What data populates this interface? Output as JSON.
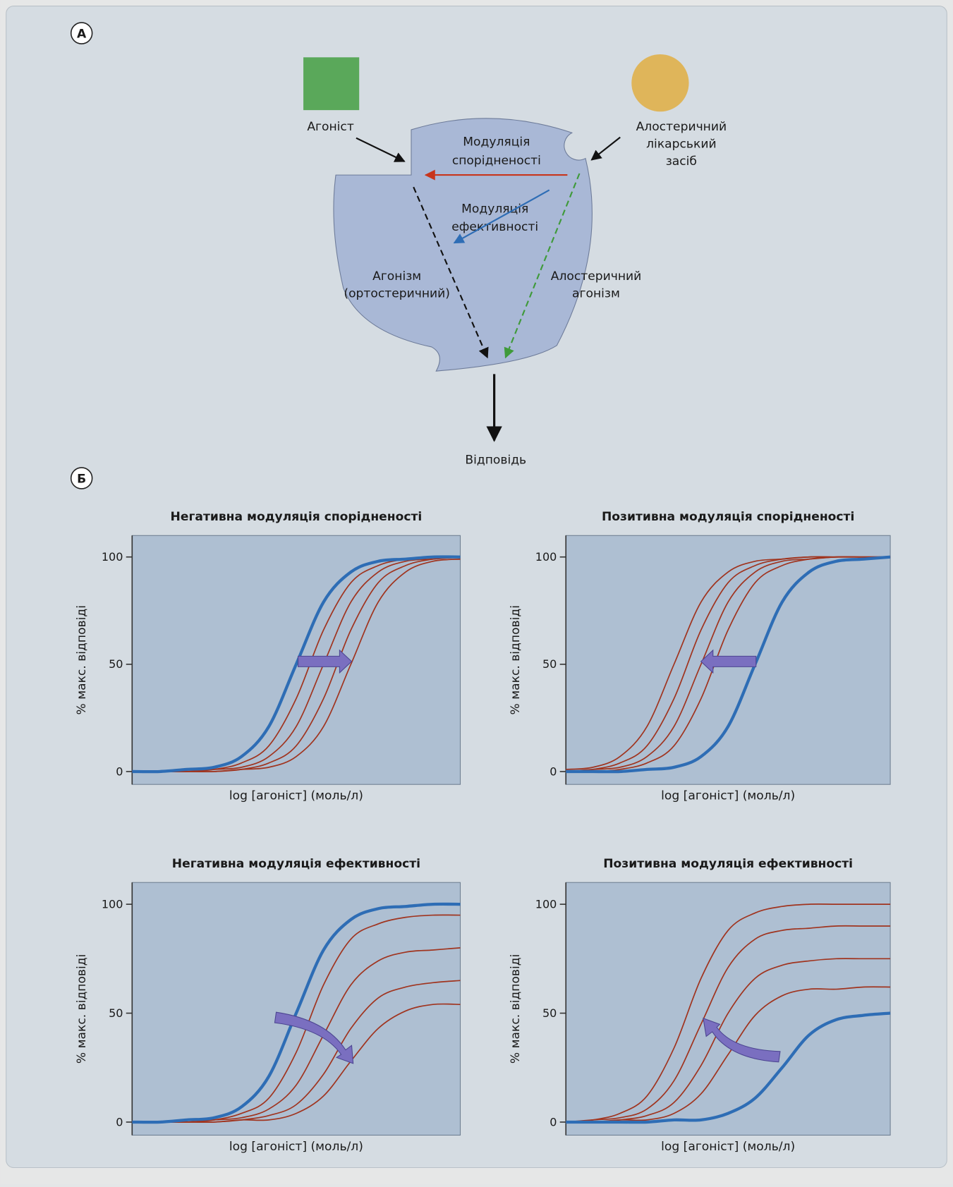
{
  "diagram": {
    "panel_a": "А",
    "panel_b": "Б",
    "agonist": "Агоніст",
    "allosteric_drug": [
      "Алостеричний",
      "лікарський",
      "засіб"
    ],
    "affinity_modulation": [
      "Модуляція",
      "спорідненості"
    ],
    "efficacy_modulation": [
      "Модуляція",
      "ефективності"
    ],
    "orthosteric_agonism": [
      "Агонізм",
      "(ортостеричний)"
    ],
    "allosteric_agonism": [
      "Алостеричний",
      "агонізм"
    ],
    "response": "Відповідь"
  },
  "chart_data": [
    {
      "type": "line",
      "title": "Негативна модуляція спорідненості",
      "x_label": "log [агоніст] (моль/л)",
      "y_label": "% макс. відповіді",
      "x": [
        0,
        1,
        2,
        3,
        4,
        5,
        6,
        7,
        8,
        9,
        10,
        11,
        12
      ],
      "xlim": [
        0,
        12
      ],
      "ylim": [
        -6,
        110
      ],
      "yticks": [
        0,
        50,
        100
      ],
      "series": [
        {
          "color": "#a0341f",
          "values": [
            0,
            0,
            0,
            0,
            1,
            2,
            7,
            21,
            50,
            79,
            93,
            98,
            99
          ]
        },
        {
          "color": "#a0341f",
          "values": [
            0,
            0,
            0,
            0,
            1,
            4,
            12,
            34,
            66,
            88,
            96,
            99,
            100
          ]
        },
        {
          "color": "#a0341f",
          "values": [
            0,
            0,
            0,
            1,
            2,
            7,
            21,
            50,
            79,
            93,
            98,
            99,
            100
          ]
        },
        {
          "color": "#a0341f",
          "values": [
            0,
            0,
            0,
            1,
            4,
            12,
            34,
            66,
            88,
            96,
            99,
            100,
            100
          ]
        },
        {
          "color": "#2e6db5",
          "values": [
            0,
            0,
            1,
            2,
            7,
            21,
            50,
            79,
            93,
            98,
            99,
            100,
            100
          ]
        }
      ]
    },
    {
      "type": "line",
      "title": "Позитивна модуляція спорідненості",
      "x_label": "log [агоніст] (моль/л)",
      "y_label": "% макс. відповіді",
      "x": [
        0,
        1,
        2,
        3,
        4,
        5,
        6,
        7,
        8,
        9,
        10,
        11,
        12
      ],
      "xlim": [
        0,
        12
      ],
      "ylim": [
        -6,
        110
      ],
      "yticks": [
        0,
        50,
        100
      ],
      "series": [
        {
          "color": "#a0341f",
          "values": [
            1,
            2,
            7,
            21,
            50,
            79,
            93,
            98,
            99,
            100,
            100,
            100,
            100
          ]
        },
        {
          "color": "#a0341f",
          "values": [
            0,
            1,
            4,
            12,
            34,
            66,
            88,
            96,
            99,
            100,
            100,
            100,
            100
          ]
        },
        {
          "color": "#a0341f",
          "values": [
            0,
            1,
            2,
            7,
            21,
            50,
            79,
            93,
            98,
            99,
            100,
            100,
            100
          ]
        },
        {
          "color": "#a0341f",
          "values": [
            0,
            0,
            1,
            4,
            12,
            34,
            66,
            88,
            96,
            99,
            100,
            100,
            100
          ]
        },
        {
          "color": "#2e6db5",
          "values": [
            0,
            0,
            0,
            1,
            2,
            7,
            21,
            50,
            79,
            93,
            98,
            99,
            100
          ]
        }
      ]
    },
    {
      "type": "line",
      "title": "Негативна модуляція ефективності",
      "x_label": "log [агоніст] (моль/л)",
      "y_label": "% макс. відповіді",
      "x": [
        0,
        1,
        2,
        3,
        4,
        5,
        6,
        7,
        8,
        9,
        10,
        11,
        12
      ],
      "xlim": [
        0,
        12
      ],
      "ylim": [
        -6,
        110
      ],
      "yticks": [
        0,
        50,
        100
      ],
      "series": [
        {
          "color": "#a0341f",
          "values": [
            0,
            0,
            0,
            1,
            4,
            11,
            32,
            63,
            84,
            91,
            94,
            95,
            95
          ]
        },
        {
          "color": "#a0341f",
          "values": [
            0,
            0,
            0,
            1,
            2,
            6,
            17,
            40,
            63,
            74,
            78,
            79,
            80
          ]
        },
        {
          "color": "#a0341f",
          "values": [
            0,
            0,
            0,
            0,
            1,
            3,
            8,
            22,
            43,
            57,
            62,
            64,
            65
          ]
        },
        {
          "color": "#a0341f",
          "values": [
            0,
            0,
            0,
            0,
            1,
            1,
            4,
            12,
            28,
            43,
            51,
            54,
            54
          ]
        },
        {
          "color": "#2e6db5",
          "values": [
            0,
            0,
            1,
            2,
            7,
            21,
            50,
            79,
            93,
            98,
            99,
            100,
            100
          ]
        }
      ]
    },
    {
      "type": "line",
      "title": "Позитивна модуляція ефективності",
      "x_label": "log [агоніст] (моль/л)",
      "y_label": "% макс. відповіді",
      "x": [
        0,
        1,
        2,
        3,
        4,
        5,
        6,
        7,
        8,
        9,
        10,
        11,
        12
      ],
      "xlim": [
        0,
        12
      ],
      "ylim": [
        -6,
        110
      ],
      "yticks": [
        0,
        50,
        100
      ],
      "series": [
        {
          "color": "#a0341f",
          "values": [
            0,
            1,
            4,
            12,
            34,
            66,
            88,
            96,
            99,
            100,
            100,
            100,
            100
          ]
        },
        {
          "color": "#a0341f",
          "values": [
            0,
            1,
            2,
            6,
            19,
            45,
            71,
            84,
            88,
            89,
            90,
            90,
            90
          ]
        },
        {
          "color": "#a0341f",
          "values": [
            0,
            0,
            1,
            3,
            9,
            26,
            50,
            66,
            72,
            74,
            75,
            75,
            75
          ]
        },
        {
          "color": "#a0341f",
          "values": [
            0,
            0,
            1,
            1,
            4,
            13,
            31,
            49,
            58,
            61,
            61,
            62,
            62
          ]
        },
        {
          "color": "#2e6db5",
          "values": [
            0,
            0,
            0,
            0,
            1,
            1,
            4,
            11,
            25,
            40,
            47,
            49,
            50
          ]
        }
      ]
    }
  ]
}
